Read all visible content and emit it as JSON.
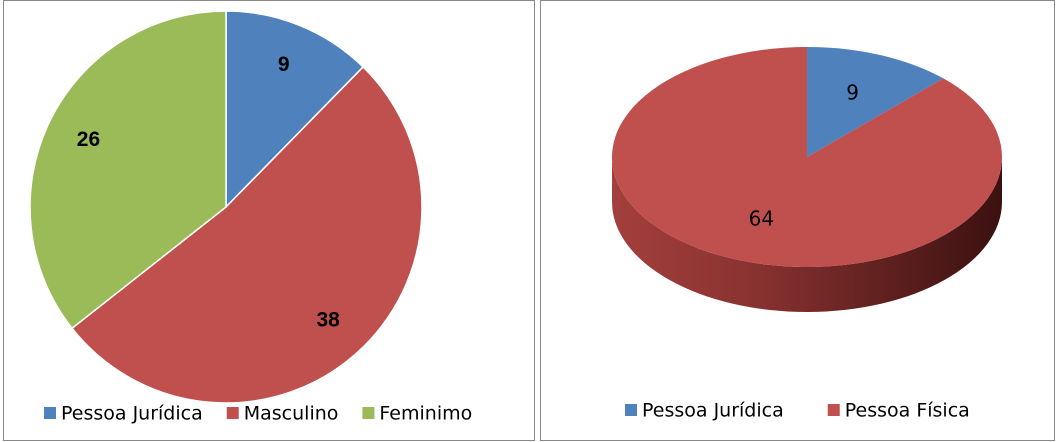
{
  "chart_data": [
    {
      "type": "pie",
      "categories": [
        "Pessoa Jurídica",
        "Masculino",
        "Feminimo"
      ],
      "values": [
        9,
        38,
        26
      ],
      "colors": [
        "#4f81bd",
        "#c0504d",
        "#9bbb59"
      ],
      "legend": "bottom"
    },
    {
      "type": "pie",
      "three_d": true,
      "categories": [
        "Pessoa Jurídica",
        "Pessoa Física"
      ],
      "values": [
        9,
        64
      ],
      "colors": [
        "#4f81bd",
        "#c0504d"
      ],
      "legend": "bottom"
    }
  ]
}
